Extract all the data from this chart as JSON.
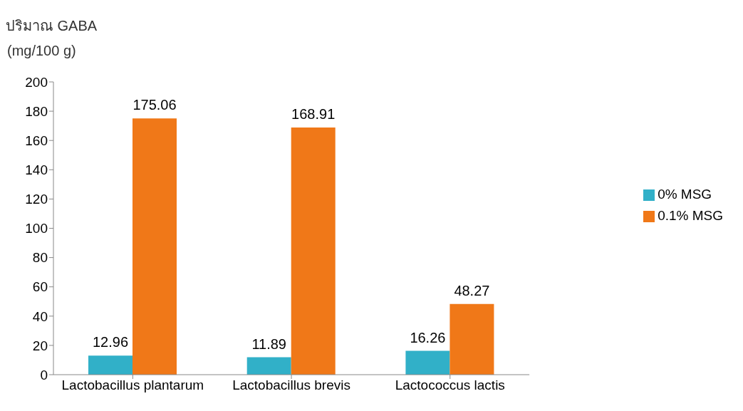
{
  "chart_data": {
    "type": "bar",
    "title": "ปริมาณ GABA",
    "ylabel": "(mg/100 g)",
    "categories": [
      "Lactobacillus plantarum",
      "Lactobacillus brevis",
      "Lactococcus lactis"
    ],
    "series": [
      {
        "name": "0% MSG",
        "color": "#31b0c8",
        "values": [
          12.96,
          11.89,
          16.26
        ]
      },
      {
        "name": "0.1% MSG",
        "color": "#f07818",
        "values": [
          175.06,
          168.91,
          48.27
        ]
      }
    ],
    "ylim": [
      0,
      200
    ],
    "yticks": [
      0,
      20,
      40,
      60,
      80,
      100,
      120,
      140,
      160,
      180,
      200
    ],
    "grid": false,
    "legend": "right",
    "data_labels": true
  }
}
